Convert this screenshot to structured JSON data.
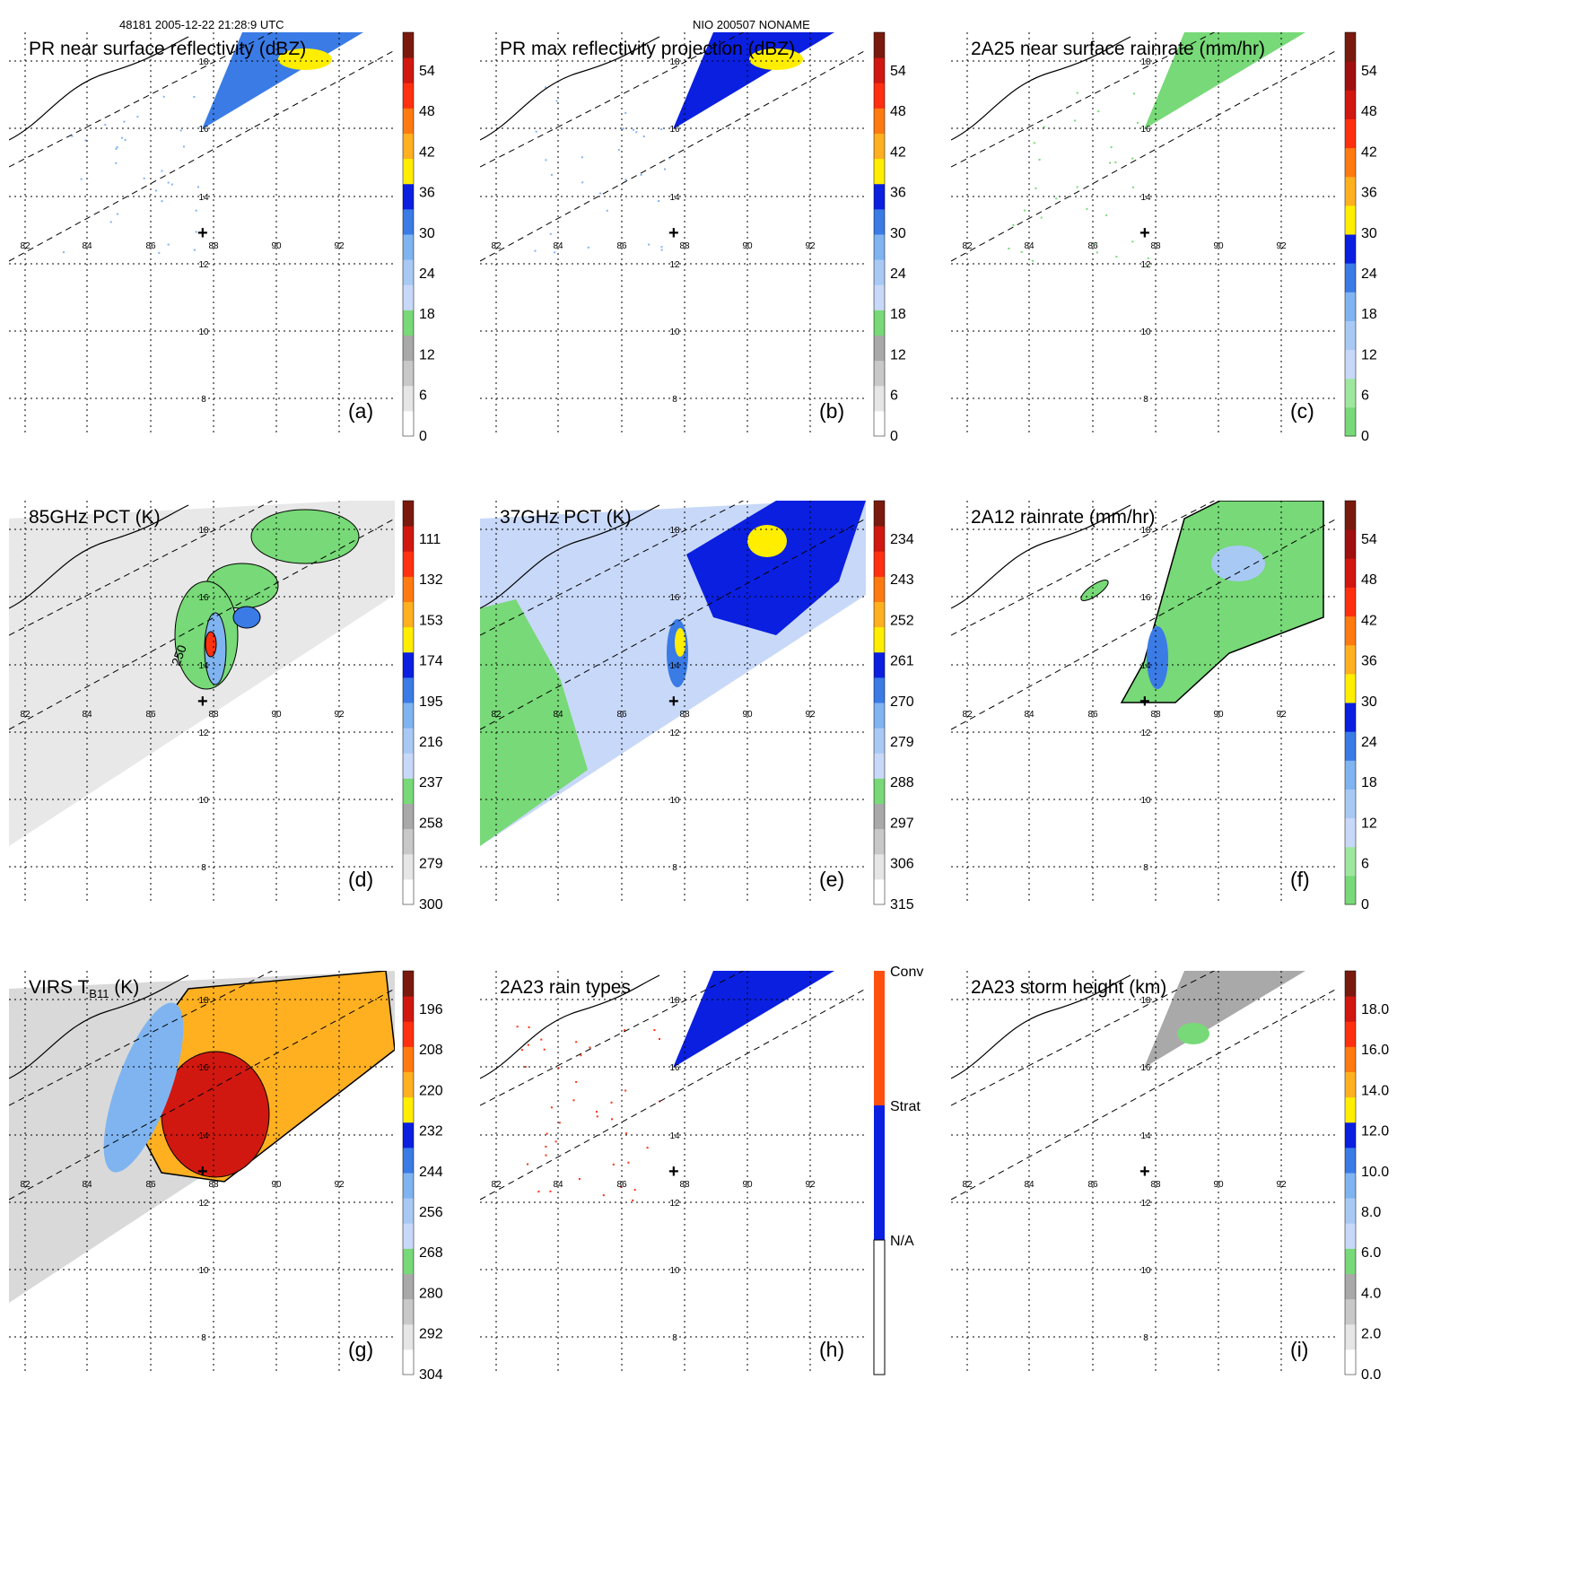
{
  "header": {
    "orbit_time": "48181 2005-12-22 21:28:9 UTC",
    "storm": "NIO 200507 NONAME"
  },
  "colors": {
    "green": "#77d977",
    "light_green": "#9ee79e",
    "grey": "#a0a0a0",
    "light_grey": "#d9d9d9",
    "pale_blue": "#c8d8f8",
    "light_blue": "#7fb4f0",
    "mid_blue": "#3a7be6",
    "blue": "#0a1fe0",
    "yellow": "#ffee00",
    "orange": "#ff8a10",
    "red": "#e8201a",
    "dark_red": "#7a1a0e"
  },
  "chart_data": [
    {
      "id": "a",
      "type": "heatmap",
      "title": "PR near surface reflectivity (dBZ)",
      "label": "(a)",
      "xticks": [
        "82",
        "84",
        "86",
        "88",
        "90",
        "92"
      ],
      "yticks": [
        "18",
        "16",
        "14",
        "12",
        "10",
        "8"
      ],
      "colorbar": {
        "ticks": [
          "54",
          "48",
          "42",
          "36",
          "30",
          "24",
          "18",
          "12",
          "6",
          "0"
        ],
        "range": [
          0,
          60
        ]
      },
      "swath": "PR"
    },
    {
      "id": "b",
      "type": "heatmap",
      "title": "PR max reflectivity projection (dBZ)",
      "label": "(b)",
      "xticks": [
        "82",
        "84",
        "86",
        "88",
        "90",
        "92"
      ],
      "yticks": [
        "18",
        "16",
        "14",
        "12",
        "10",
        "8"
      ],
      "colorbar": {
        "ticks": [
          "54",
          "48",
          "42",
          "36",
          "30",
          "24",
          "18",
          "12",
          "6",
          "0"
        ],
        "range": [
          0,
          60
        ]
      },
      "swath": "PR"
    },
    {
      "id": "c",
      "type": "heatmap",
      "title": "2A25 near surface rainrate (mm/hr)",
      "label": "(c)",
      "xticks": [
        "82",
        "84",
        "86",
        "88",
        "90",
        "92"
      ],
      "yticks": [
        "18",
        "16",
        "14",
        "12",
        "10",
        "8"
      ],
      "colorbar": {
        "ticks": [
          "54",
          "48",
          "42",
          "36",
          "30",
          "24",
          "18",
          "12",
          "6",
          "0"
        ],
        "range": [
          0,
          60
        ]
      },
      "swath": "PR"
    },
    {
      "id": "d",
      "type": "heatmap",
      "title": "85GHz PCT (K)",
      "label": "(d)",
      "contour_label": "250",
      "xticks": [
        "82",
        "84",
        "86",
        "88",
        "90",
        "92"
      ],
      "yticks": [
        "18",
        "16",
        "14",
        "12",
        "10",
        "8"
      ],
      "colorbar": {
        "ticks": [
          "111",
          "132",
          "153",
          "174",
          "195",
          "216",
          "237",
          "258",
          "279",
          "300"
        ],
        "range": [
          90,
          300
        ]
      },
      "swath": "TMI"
    },
    {
      "id": "e",
      "type": "heatmap",
      "title": "37GHz PCT (K)",
      "label": "(e)",
      "xticks": [
        "82",
        "84",
        "86",
        "88",
        "90",
        "92"
      ],
      "yticks": [
        "18",
        "16",
        "14",
        "12",
        "10",
        "8"
      ],
      "colorbar": {
        "ticks": [
          "234",
          "243",
          "252",
          "261",
          "270",
          "279",
          "288",
          "297",
          "306",
          "315"
        ],
        "range": [
          225,
          315
        ]
      },
      "swath": "TMI"
    },
    {
      "id": "f",
      "type": "heatmap",
      "title": "2A12 rainrate (mm/hr)",
      "label": "(f)",
      "xticks": [
        "82",
        "84",
        "86",
        "88",
        "90",
        "92"
      ],
      "yticks": [
        "18",
        "16",
        "14",
        "12",
        "10",
        "8"
      ],
      "colorbar": {
        "ticks": [
          "54",
          "48",
          "42",
          "36",
          "30",
          "24",
          "18",
          "12",
          "6",
          "0"
        ],
        "range": [
          0,
          60
        ]
      },
      "swath": "TMI"
    },
    {
      "id": "g",
      "type": "heatmap",
      "title_main": "VIRS T",
      "title_sub": "B11",
      "title_tail": " (K)",
      "label": "(g)",
      "xticks": [
        "82",
        "84",
        "86",
        "88",
        "90",
        "92"
      ],
      "yticks": [
        "18",
        "16",
        "14",
        "12",
        "10",
        "8"
      ],
      "colorbar": {
        "ticks": [
          "196",
          "208",
          "220",
          "232",
          "244",
          "256",
          "268",
          "280",
          "292",
          "304"
        ],
        "range": [
          184,
          304
        ]
      },
      "swath": "VIRS"
    },
    {
      "id": "h",
      "type": "heatmap",
      "title": "2A23 rain types",
      "label": "(h)",
      "xticks": [
        "82",
        "84",
        "86",
        "88",
        "90",
        "92"
      ],
      "yticks": [
        "18",
        "16",
        "14",
        "12",
        "10",
        "8"
      ],
      "colorbar": {
        "categorical": [
          "Conv",
          "Strat",
          "N/A"
        ]
      },
      "swath": "PR"
    },
    {
      "id": "i",
      "type": "heatmap",
      "title": "2A23 storm height (km)",
      "label": "(i)",
      "xticks": [
        "82",
        "84",
        "86",
        "88",
        "90",
        "92"
      ],
      "yticks": [
        "18",
        "16",
        "14",
        "12",
        "10",
        "8"
      ],
      "colorbar": {
        "ticks": [
          "18.0",
          "16.0",
          "14.0",
          "12.0",
          "10.0",
          "8.0",
          "6.0",
          "4.0",
          "2.0",
          "0.0"
        ],
        "range": [
          0,
          20
        ]
      },
      "swath": "PR"
    }
  ]
}
